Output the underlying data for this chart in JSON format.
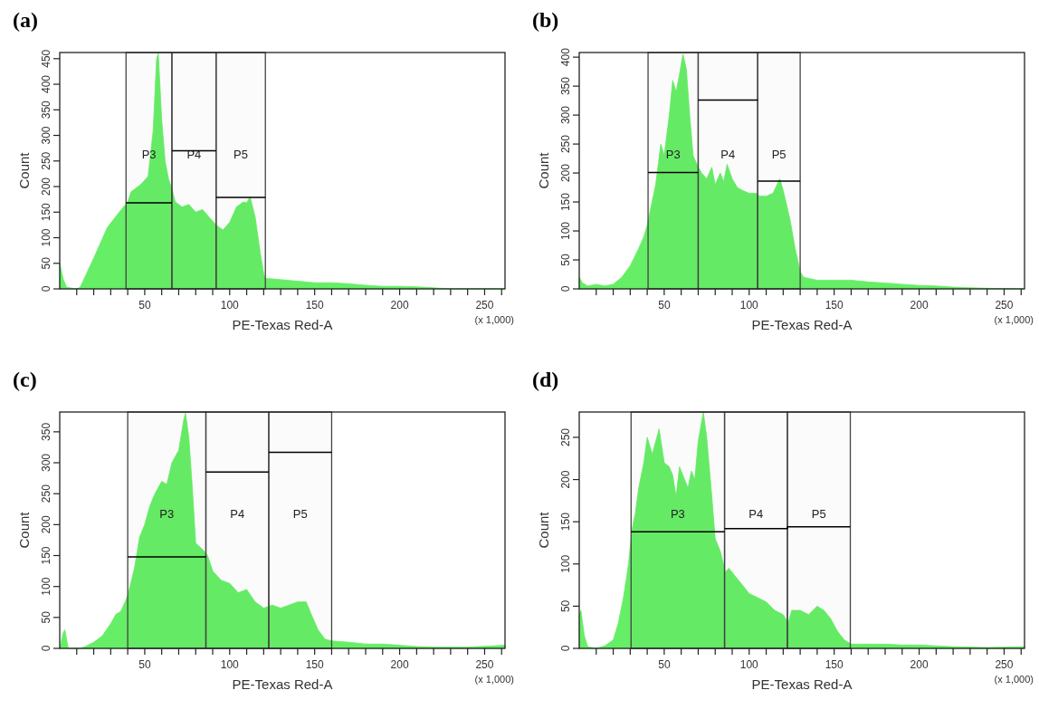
{
  "chart_data": [
    {
      "type": "area",
      "title": "(a)",
      "xlabel": "PE-Texas Red-A",
      "ylabel": "Count",
      "annotations": [
        "(x 1,000)"
      ],
      "xlim": [
        0,
        262
      ],
      "ylim": [
        0,
        462
      ],
      "xticks": [
        {
          "value": 10,
          "label": null
        },
        {
          "value": 20,
          "label": null
        },
        {
          "value": 30,
          "label": null
        },
        {
          "value": 40,
          "label": null
        },
        50,
        {
          "value": 60,
          "label": null
        },
        {
          "value": 70,
          "label": null
        },
        {
          "value": 80,
          "label": null
        },
        {
          "value": 90,
          "label": null
        },
        100,
        {
          "value": 110,
          "label": null
        },
        {
          "value": 120,
          "label": null
        },
        {
          "value": 130,
          "label": null
        },
        {
          "value": 140,
          "label": null
        },
        150,
        {
          "value": 160,
          "label": null
        },
        {
          "value": 170,
          "label": null
        },
        {
          "value": 180,
          "label": null
        },
        {
          "value": 190,
          "label": null
        },
        200,
        {
          "value": 210,
          "label": null
        },
        {
          "value": 220,
          "label": null
        },
        {
          "value": 230,
          "label": null
        },
        {
          "value": 240,
          "label": null
        },
        250,
        {
          "value": 260,
          "label": null
        }
      ],
      "yticks": [
        0,
        50,
        100,
        150,
        200,
        250,
        300,
        350,
        400,
        450
      ],
      "bands": [
        {
          "axis": "x",
          "from": 39,
          "to": 66,
          "label": "P3",
          "color": "#444444"
        },
        {
          "axis": "x",
          "from": 66,
          "to": 92,
          "label": "P4",
          "color": "#444444"
        },
        {
          "axis": "x",
          "from": 92,
          "to": 121,
          "label": "P5",
          "color": "#444444"
        }
      ],
      "series": [
        {
          "type": "area",
          "color": "#66ee66",
          "x": [
            0,
            2,
            4,
            10,
            12,
            20,
            28,
            35,
            40,
            42,
            48,
            52,
            55,
            57,
            58,
            60,
            62,
            64,
            66,
            68,
            72,
            76,
            80,
            84,
            88,
            92,
            96,
            100,
            104,
            108,
            110,
            112,
            115,
            118,
            120,
            121,
            124,
            130,
            140,
            150,
            160,
            170,
            180,
            190,
            200,
            210,
            220,
            230,
            262
          ],
          "values": [
            50,
            20,
            3,
            0,
            3,
            60,
            120,
            150,
            170,
            190,
            205,
            220,
            310,
            450,
            460,
            330,
            250,
            215,
            195,
            170,
            160,
            165,
            150,
            155,
            140,
            125,
            115,
            130,
            160,
            170,
            168,
            180,
            140,
            70,
            30,
            20,
            20,
            18,
            15,
            12,
            12,
            10,
            7,
            5,
            5,
            4,
            2,
            0,
            0
          ]
        },
        {
          "type": "line",
          "color": "#000000",
          "x": [
            39,
            66
          ],
          "values": [
            168,
            168
          ]
        },
        {
          "type": "line",
          "color": "#000000",
          "x": [
            66,
            92
          ],
          "values": [
            270,
            270
          ]
        },
        {
          "type": "line",
          "color": "#000000",
          "x": [
            92,
            121
          ],
          "values": [
            179,
            179
          ]
        }
      ]
    },
    {
      "type": "area",
      "title": "(b)",
      "xlabel": "PE-Texas Red-A",
      "ylabel": "Count",
      "annotations": [
        "(x 1,000)"
      ],
      "xlim": [
        0,
        262
      ],
      "ylim": [
        0,
        408
      ],
      "xticks": [
        {
          "value": 10,
          "label": null
        },
        {
          "value": 20,
          "label": null
        },
        {
          "value": 30,
          "label": null
        },
        {
          "value": 40,
          "label": null
        },
        50,
        {
          "value": 60,
          "label": null
        },
        {
          "value": 70,
          "label": null
        },
        {
          "value": 80,
          "label": null
        },
        {
          "value": 90,
          "label": null
        },
        100,
        {
          "value": 110,
          "label": null
        },
        {
          "value": 120,
          "label": null
        },
        {
          "value": 130,
          "label": null
        },
        {
          "value": 140,
          "label": null
        },
        150,
        {
          "value": 160,
          "label": null
        },
        {
          "value": 170,
          "label": null
        },
        {
          "value": 180,
          "label": null
        },
        {
          "value": 190,
          "label": null
        },
        200,
        {
          "value": 210,
          "label": null
        },
        {
          "value": 220,
          "label": null
        },
        {
          "value": 230,
          "label": null
        },
        {
          "value": 240,
          "label": null
        },
        250,
        {
          "value": 260,
          "label": null
        }
      ],
      "yticks": [
        0,
        50,
        100,
        150,
        200,
        250,
        300,
        350,
        400
      ],
      "bands": [
        {
          "axis": "x",
          "from": 40.5,
          "to": 70,
          "label": "P3",
          "color": "#444444"
        },
        {
          "axis": "x",
          "from": 70,
          "to": 105,
          "label": "P4",
          "color": "#444444"
        },
        {
          "axis": "x",
          "from": 105,
          "to": 130,
          "label": "P5",
          "color": "#444444"
        }
      ],
      "series": [
        {
          "type": "area",
          "color": "#66ee66",
          "x": [
            0,
            2,
            5,
            10,
            15,
            20,
            25,
            30,
            35,
            38,
            40,
            45,
            48,
            50,
            53,
            55,
            57,
            59,
            61,
            63,
            65,
            67,
            70,
            72,
            75,
            78,
            80,
            83,
            85,
            87,
            90,
            93,
            96,
            100,
            104,
            106,
            110,
            114,
            118,
            120,
            124,
            127,
            130,
            132,
            140,
            150,
            160,
            170,
            180,
            190,
            200,
            210,
            220,
            230,
            240,
            262
          ],
          "values": [
            20,
            10,
            5,
            8,
            5,
            8,
            20,
            40,
            70,
            90,
            110,
            180,
            250,
            230,
            300,
            360,
            340,
            370,
            405,
            380,
            300,
            230,
            210,
            200,
            190,
            210,
            180,
            200,
            185,
            215,
            190,
            175,
            170,
            165,
            165,
            160,
            160,
            165,
            190,
            170,
            120,
            70,
            30,
            20,
            15,
            15,
            15,
            12,
            10,
            8,
            6,
            5,
            3,
            2,
            1,
            0
          ]
        },
        {
          "type": "line",
          "color": "#000000",
          "x": [
            40.5,
            70
          ],
          "values": [
            201,
            201
          ]
        },
        {
          "type": "line",
          "color": "#000000",
          "x": [
            70,
            105
          ],
          "values": [
            326,
            326
          ]
        },
        {
          "type": "line",
          "color": "#000000",
          "x": [
            105,
            130
          ],
          "values": [
            186,
            186
          ]
        }
      ]
    },
    {
      "type": "area",
      "title": "(c)",
      "xlabel": "PE-Texas Red-A",
      "ylabel": "Count",
      "annotations": [
        "(x 1,000)"
      ],
      "xlim": [
        0,
        262
      ],
      "ylim": [
        0,
        382
      ],
      "xticks": [
        {
          "value": 10,
          "label": null
        },
        {
          "value": 20,
          "label": null
        },
        {
          "value": 30,
          "label": null
        },
        {
          "value": 40,
          "label": null
        },
        50,
        {
          "value": 60,
          "label": null
        },
        {
          "value": 70,
          "label": null
        },
        {
          "value": 80,
          "label": null
        },
        {
          "value": 90,
          "label": null
        },
        100,
        {
          "value": 110,
          "label": null
        },
        {
          "value": 120,
          "label": null
        },
        {
          "value": 130,
          "label": null
        },
        {
          "value": 140,
          "label": null
        },
        150,
        {
          "value": 160,
          "label": null
        },
        {
          "value": 170,
          "label": null
        },
        {
          "value": 180,
          "label": null
        },
        {
          "value": 190,
          "label": null
        },
        200,
        {
          "value": 210,
          "label": null
        },
        {
          "value": 220,
          "label": null
        },
        {
          "value": 230,
          "label": null
        },
        {
          "value": 240,
          "label": null
        },
        250,
        {
          "value": 260,
          "label": null
        }
      ],
      "yticks": [
        0,
        50,
        100,
        150,
        200,
        250,
        300,
        350
      ],
      "bands": [
        {
          "axis": "x",
          "from": 40,
          "to": 86,
          "label": "P3",
          "color": "#444444"
        },
        {
          "axis": "x",
          "from": 86,
          "to": 123,
          "label": "P4",
          "color": "#444444"
        },
        {
          "axis": "x",
          "from": 123,
          "to": 160,
          "label": "P5",
          "color": "#444444"
        }
      ],
      "series": [
        {
          "type": "area",
          "color": "#66ee66",
          "x": [
            0,
            2,
            3,
            5,
            12,
            15,
            20,
            25,
            30,
            33,
            36,
            40,
            44,
            47,
            50,
            53,
            56,
            60,
            63,
            66,
            70,
            73,
            74,
            76,
            78,
            80,
            84,
            87,
            90,
            95,
            100,
            105,
            110,
            115,
            120,
            125,
            130,
            135,
            140,
            145,
            148,
            152,
            156,
            160,
            170,
            180,
            190,
            200,
            210,
            220,
            240,
            262
          ],
          "values": [
            0,
            25,
            30,
            0,
            0,
            3,
            10,
            20,
            40,
            55,
            60,
            85,
            130,
            180,
            200,
            230,
            250,
            270,
            265,
            300,
            320,
            370,
            380,
            340,
            260,
            170,
            160,
            150,
            125,
            110,
            105,
            90,
            95,
            75,
            65,
            70,
            65,
            70,
            75,
            75,
            55,
            30,
            15,
            12,
            10,
            7,
            7,
            5,
            3,
            2,
            2,
            5
          ]
        },
        {
          "type": "line",
          "color": "#000000",
          "x": [
            40,
            86
          ],
          "values": [
            148,
            148
          ]
        },
        {
          "type": "line",
          "color": "#000000",
          "x": [
            86,
            123
          ],
          "values": [
            285,
            285
          ]
        },
        {
          "type": "line",
          "color": "#000000",
          "x": [
            123,
            160
          ],
          "values": [
            317,
            317
          ]
        }
      ]
    },
    {
      "type": "area",
      "title": "(d)",
      "xlabel": "PE-Texas Red-A",
      "ylabel": "Count",
      "annotations": [
        "(x 1,000)"
      ],
      "xlim": [
        0,
        262
      ],
      "ylim": [
        0,
        280
      ],
      "xticks": [
        {
          "value": 10,
          "label": null
        },
        {
          "value": 20,
          "label": null
        },
        {
          "value": 30,
          "label": null
        },
        {
          "value": 40,
          "label": null
        },
        50,
        {
          "value": 60,
          "label": null
        },
        {
          "value": 70,
          "label": null
        },
        {
          "value": 80,
          "label": null
        },
        {
          "value": 90,
          "label": null
        },
        100,
        {
          "value": 110,
          "label": null
        },
        {
          "value": 120,
          "label": null
        },
        {
          "value": 130,
          "label": null
        },
        {
          "value": 140,
          "label": null
        },
        150,
        {
          "value": 160,
          "label": null
        },
        {
          "value": 170,
          "label": null
        },
        {
          "value": 180,
          "label": null
        },
        {
          "value": 190,
          "label": null
        },
        200,
        {
          "value": 210,
          "label": null
        },
        {
          "value": 220,
          "label": null
        },
        {
          "value": 230,
          "label": null
        },
        {
          "value": 240,
          "label": null
        },
        250,
        {
          "value": 260,
          "label": null
        }
      ],
      "yticks": [
        0,
        50,
        100,
        150,
        200,
        250
      ],
      "bands": [
        {
          "axis": "x",
          "from": 30.5,
          "to": 85.5,
          "label": "P3",
          "color": "#444444"
        },
        {
          "axis": "x",
          "from": 85.5,
          "to": 122.5,
          "label": "P4",
          "color": "#444444"
        },
        {
          "axis": "x",
          "from": 122.5,
          "to": 159.5,
          "label": "P5",
          "color": "#444444"
        }
      ],
      "series": [
        {
          "type": "area",
          "color": "#66ee66",
          "x": [
            0,
            1,
            3,
            5,
            10,
            15,
            20,
            23,
            26,
            29,
            31,
            33,
            35,
            38,
            40,
            43,
            47,
            50,
            53,
            55,
            57,
            59,
            62,
            64,
            66,
            68,
            70,
            73,
            75,
            78,
            80,
            83,
            86,
            88,
            92,
            96,
            100,
            105,
            110,
            115,
            120,
            123,
            125,
            130,
            135,
            140,
            144,
            148,
            152,
            156,
            160,
            170,
            180,
            190,
            200,
            210,
            220,
            240,
            262
          ],
          "values": [
            40,
            45,
            15,
            2,
            0,
            3,
            10,
            30,
            60,
            100,
            140,
            160,
            190,
            220,
            250,
            230,
            260,
            220,
            215,
            205,
            180,
            215,
            200,
            190,
            210,
            200,
            245,
            280,
            250,
            180,
            130,
            115,
            90,
            95,
            85,
            75,
            65,
            60,
            55,
            45,
            40,
            30,
            45,
            45,
            40,
            50,
            45,
            35,
            20,
            10,
            5,
            5,
            5,
            4,
            4,
            3,
            2,
            1,
            2
          ]
        },
        {
          "type": "line",
          "color": "#000000",
          "x": [
            30.5,
            85.5
          ],
          "values": [
            138,
            138
          ]
        },
        {
          "type": "line",
          "color": "#000000",
          "x": [
            85.5,
            122.5,
            122.5,
            159.5
          ],
          "values": [
            142,
            142,
            144,
            144
          ]
        }
      ]
    }
  ]
}
